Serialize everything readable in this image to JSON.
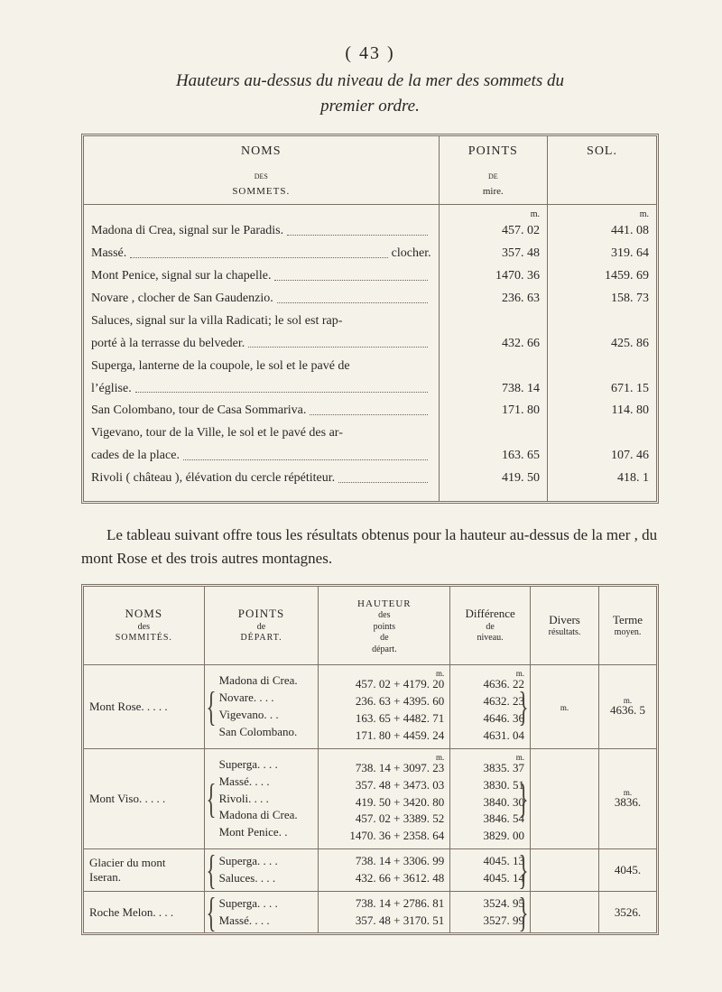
{
  "page_number": "( 43 )",
  "title_line1": "Hauteurs au-dessus du niveau de la mer des sommets du",
  "title_line2": "premier ordre.",
  "table1": {
    "header": {
      "noms": "NOMS",
      "noms_sub": "des",
      "noms_sub2": "SOMMETS.",
      "points": "POINTS",
      "points_sub": "de",
      "points_sub2": "mire.",
      "sol": "SOL.",
      "unit": "m."
    },
    "rows": [
      {
        "name": "Madona di Crea, signal sur le Paradis.",
        "pts": "457. 02",
        "sol": "441. 08"
      },
      {
        "name": "Massé.",
        "suffix": "clocher.",
        "pts": "357. 48",
        "sol": "319. 64"
      },
      {
        "name": "Mont Penice, signal sur la chapelle.",
        "pts": "1470. 36",
        "sol": "1459. 69"
      },
      {
        "name": "Novare , clocher de San Gaudenzio.",
        "pts": "236. 63",
        "sol": "158. 73"
      },
      {
        "name": "Saluces, signal sur la villa Radicati; le sol est rap-",
        "cont": true
      },
      {
        "name": "porté à la terrasse du belveder.",
        "indent": true,
        "pts": "432. 66",
        "sol": "425. 86"
      },
      {
        "name": "Superga, lanterne de la coupole, le sol et le pavé de",
        "cont": true
      },
      {
        "name": "l’église.",
        "indent": true,
        "pts": "738. 14",
        "sol": "671. 15"
      },
      {
        "name": "San Colombano, tour de Casa Sommariva.",
        "pts": "171. 80",
        "sol": "114. 80"
      },
      {
        "name": "Vigevano, tour de la Ville, le sol et le pavé des ar-",
        "cont": true
      },
      {
        "name": "cades de la place.",
        "indent": true,
        "pts": "163. 65",
        "sol": "107. 46"
      },
      {
        "name": "Rivoli ( château ), élévation du cercle répétiteur.",
        "pts": "419. 50",
        "sol": "418.  1"
      }
    ]
  },
  "mid_paragraph": "Le tableau suivant offre tous les résultats obtenus pour la hauteur au-dessus de la mer , du mont Rose et des trois autres montagnes.",
  "table2": {
    "header": {
      "noms": "NOMS",
      "noms_sub": "des",
      "noms_sub2": "SOMMITÉS.",
      "points": "POINTS",
      "points_sub": "de",
      "points_sub2": "DÉPART.",
      "hauteur": "HAUTEUR",
      "hauteur_sub": "des",
      "hauteur_sub2": "points",
      "hauteur_sub3": "de",
      "hauteur_sub4": "départ.",
      "diff": "Différence",
      "diff_sub": "de",
      "diff_sub2": "niveau.",
      "divers": "Divers",
      "divers_sub": "résultats.",
      "terme": "Terme",
      "terme_sub": "moyen."
    },
    "groups": [
      {
        "name": "Mont Rose. . . . .",
        "points": [
          "Madona di Crea.",
          "Novare. . . .",
          "Vigevano. . .",
          "San Colombano."
        ],
        "hauteur_unit": "m.",
        "hauteur": [
          "457. 02 + 4179. 20",
          "236. 63 + 4395. 60",
          "163. 65 + 4482. 71",
          "171. 80 + 4459. 24"
        ],
        "diff_unit": "m.",
        "diff": [
          "4636. 22",
          "4632. 23",
          "4646. 36",
          "4631. 04"
        ],
        "divers_unit": "m.",
        "terme_unit": "m.",
        "terme": "4636. 5"
      },
      {
        "name": "Mont Viso. . . . .",
        "points": [
          "Superga. . . .",
          "Massé. . . .",
          "Rivoli. . . .",
          "Madona di Crea.",
          "Mont Penice. ."
        ],
        "hauteur_unit": "m.",
        "hauteur": [
          "738. 14 + 3097. 23",
          "357. 48 + 3473. 03",
          "419. 50 + 3420. 80",
          "457. 02 + 3389. 52",
          "1470. 36 + 2358. 64"
        ],
        "diff_unit": "m.",
        "diff": [
          "3835. 37",
          "3830. 51",
          "3840. 30",
          "3846. 54",
          "3829. 00"
        ],
        "terme_unit": "m.",
        "terme": "3836."
      },
      {
        "name": "Glacier du mont Iseran.",
        "points": [
          "Superga. . . .",
          "Saluces. . . ."
        ],
        "hauteur": [
          "738. 14 + 3306. 99",
          "432. 66 + 3612. 48"
        ],
        "diff": [
          "4045. 13",
          "4045. 14"
        ],
        "terme": "4045."
      },
      {
        "name": "Roche Melon. . . .",
        "points": [
          "Superga. . . .",
          "Massé. . . ."
        ],
        "hauteur": [
          "738. 14 + 2786. 81",
          "357. 48 + 3170. 51"
        ],
        "diff": [
          "3524. 95",
          "3527. 99"
        ],
        "terme": "3526."
      }
    ]
  }
}
